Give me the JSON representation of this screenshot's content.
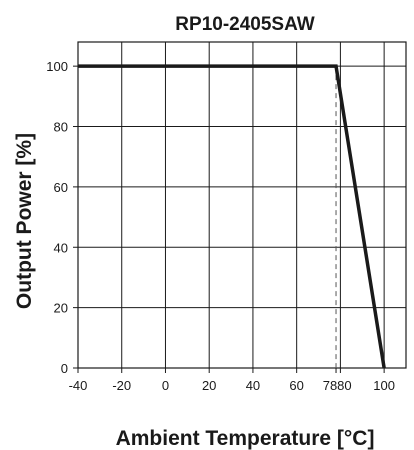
{
  "chart_data": {
    "type": "line",
    "title": "RP10-2405SAW",
    "xlabel": "Ambient Temperature [°C]",
    "ylabel": "Output Power [%]",
    "xlim": [
      -40,
      110
    ],
    "ylim": [
      0,
      108
    ],
    "x_ticks": [
      -40,
      -20,
      0,
      20,
      40,
      60,
      78,
      80,
      100
    ],
    "y_ticks": [
      0,
      20,
      40,
      60,
      80,
      100
    ],
    "x_grid": [
      -40,
      -20,
      0,
      20,
      40,
      60,
      80,
      100
    ],
    "grid": true,
    "series": [
      {
        "x": [
          -40,
          78,
          100
        ],
        "y": [
          100,
          100,
          0
        ]
      }
    ],
    "guide_line": {
      "x": 78,
      "style": "dashed"
    },
    "colors": {
      "line": "#1a1a1a",
      "grid": "#1a1a1a",
      "guide": "#555555"
    }
  }
}
